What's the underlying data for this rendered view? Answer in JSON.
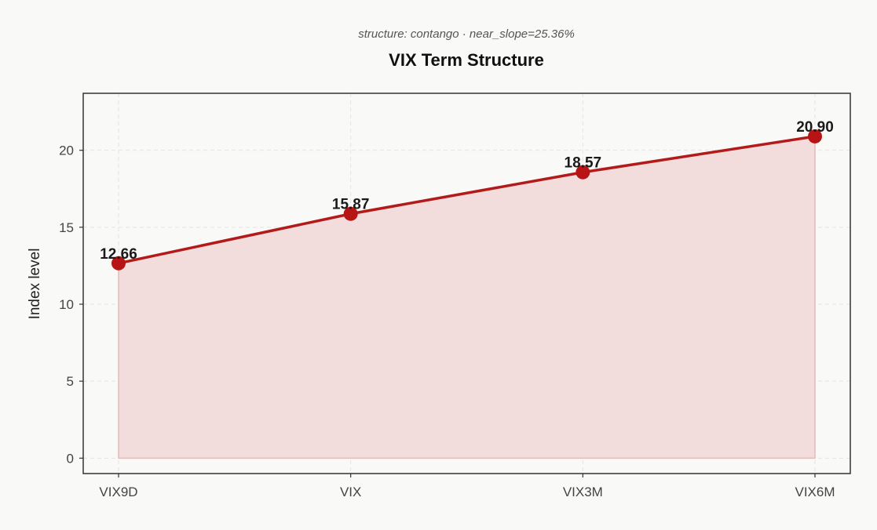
{
  "chart_data": {
    "type": "area",
    "title": "VIX Term Structure",
    "subtitle": "structure: contango · near_slope=25.36%",
    "xlabel": "",
    "ylabel": "Index level",
    "categories": [
      "VIX9D",
      "VIX",
      "VIX3M",
      "VIX6M"
    ],
    "series": [
      {
        "values": [
          12.66,
          15.87,
          18.57,
          20.9
        ],
        "data_labels": [
          "12.66",
          "15.87",
          "18.57",
          "20.90"
        ]
      }
    ],
    "ylim": [
      -1,
      23.7
    ],
    "yticks": [
      0,
      5,
      10,
      15,
      20
    ],
    "grid": true,
    "legend": "none",
    "colors": {
      "line": "#b31b1b",
      "marker": "#b71515",
      "fill": "#f2dddc",
      "fill_edge": "#e0bcbb"
    }
  }
}
